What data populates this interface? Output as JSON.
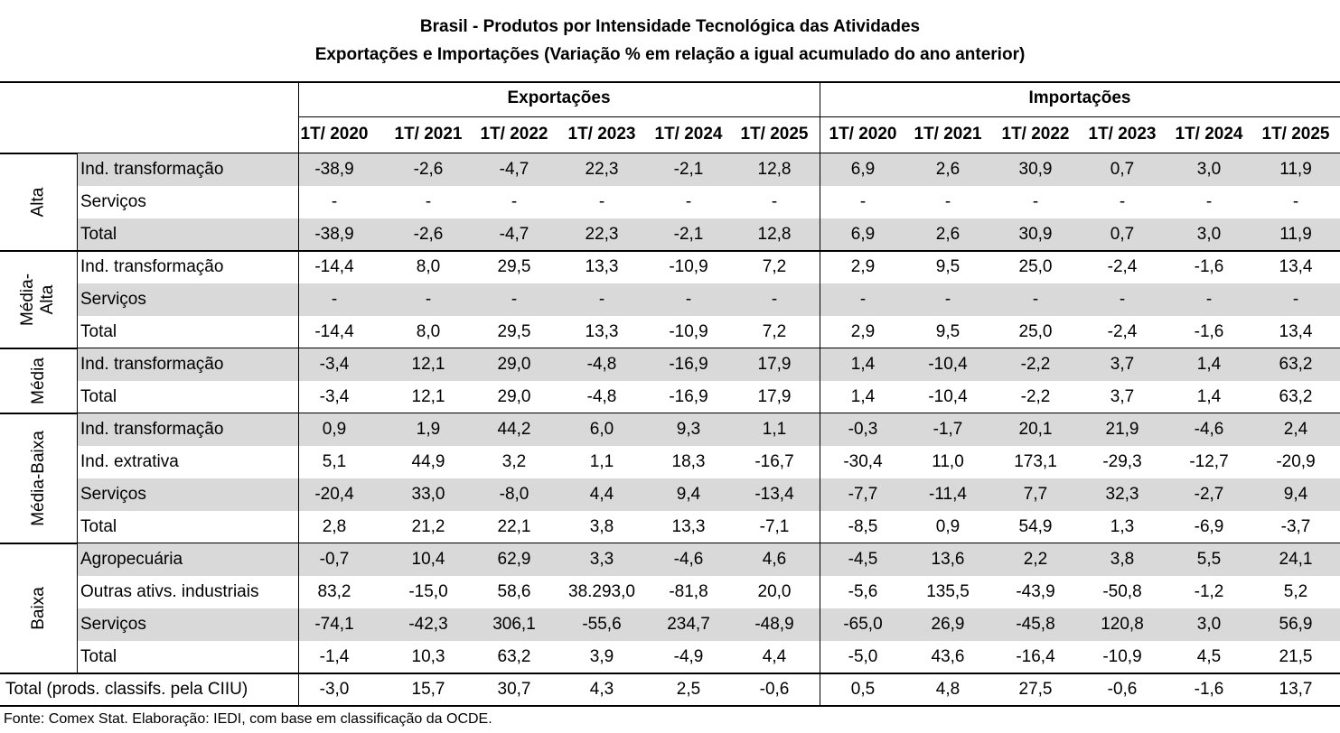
{
  "title_line1": "Brasil - Produtos por Intensidade Tecnológica das Atividades",
  "title_line2": "Exportações e Importações (Variação % em relação a igual acumulado do ano anterior)",
  "header": {
    "exports": "Exportações",
    "imports": "Importações",
    "periods": [
      "1T/ 2020",
      "1T/ 2021",
      "1T/ 2022",
      "1T/ 2023",
      "1T/ 2024",
      "1T/ 2025"
    ]
  },
  "groups": [
    {
      "name": "Alta",
      "rows": [
        {
          "label": "Ind. transformação",
          "exp": [
            "-38,9",
            "-2,6",
            "-4,7",
            "22,3",
            "-2,1",
            "12,8"
          ],
          "imp": [
            "6,9",
            "2,6",
            "30,9",
            "0,7",
            "3,0",
            "11,9"
          ]
        },
        {
          "label": "Serviços",
          "exp": [
            "-",
            "-",
            "-",
            "-",
            "-",
            "-"
          ],
          "imp": [
            "-",
            "-",
            "-",
            "-",
            "-",
            "-"
          ]
        },
        {
          "label": "Total",
          "exp": [
            "-38,9",
            "-2,6",
            "-4,7",
            "22,3",
            "-2,1",
            "12,8"
          ],
          "imp": [
            "6,9",
            "2,6",
            "30,9",
            "0,7",
            "3,0",
            "11,9"
          ]
        }
      ]
    },
    {
      "name": "Média-\nAlta",
      "rows": [
        {
          "label": "Ind. transformação",
          "exp": [
            "-14,4",
            "8,0",
            "29,5",
            "13,3",
            "-10,9",
            "7,2"
          ],
          "imp": [
            "2,9",
            "9,5",
            "25,0",
            "-2,4",
            "-1,6",
            "13,4"
          ]
        },
        {
          "label": "Serviços",
          "exp": [
            "-",
            "-",
            "-",
            "-",
            "-",
            "-"
          ],
          "imp": [
            "-",
            "-",
            "-",
            "-",
            "-",
            "-"
          ]
        },
        {
          "label": "Total",
          "exp": [
            "-14,4",
            "8,0",
            "29,5",
            "13,3",
            "-10,9",
            "7,2"
          ],
          "imp": [
            "2,9",
            "9,5",
            "25,0",
            "-2,4",
            "-1,6",
            "13,4"
          ]
        }
      ]
    },
    {
      "name": "Média",
      "rows": [
        {
          "label": "Ind. transformação",
          "exp": [
            "-3,4",
            "12,1",
            "29,0",
            "-4,8",
            "-16,9",
            "17,9"
          ],
          "imp": [
            "1,4",
            "-10,4",
            "-2,2",
            "3,7",
            "1,4",
            "63,2"
          ]
        },
        {
          "label": "Total",
          "exp": [
            "-3,4",
            "12,1",
            "29,0",
            "-4,8",
            "-16,9",
            "17,9"
          ],
          "imp": [
            "1,4",
            "-10,4",
            "-2,2",
            "3,7",
            "1,4",
            "63,2"
          ]
        }
      ]
    },
    {
      "name": "Média-Baixa",
      "rows": [
        {
          "label": "Ind. transformação",
          "exp": [
            "0,9",
            "1,9",
            "44,2",
            "6,0",
            "9,3",
            "1,1"
          ],
          "imp": [
            "-0,3",
            "-1,7",
            "20,1",
            "21,9",
            "-4,6",
            "2,4"
          ]
        },
        {
          "label": "Ind. extrativa",
          "exp": [
            "5,1",
            "44,9",
            "3,2",
            "1,1",
            "18,3",
            "-16,7"
          ],
          "imp": [
            "-30,4",
            "11,0",
            "173,1",
            "-29,3",
            "-12,7",
            "-20,9"
          ]
        },
        {
          "label": "Serviços",
          "exp": [
            "-20,4",
            "33,0",
            "-8,0",
            "4,4",
            "9,4",
            "-13,4"
          ],
          "imp": [
            "-7,7",
            "-11,4",
            "7,7",
            "32,3",
            "-2,7",
            "9,4"
          ]
        },
        {
          "label": "Total",
          "exp": [
            "2,8",
            "21,2",
            "22,1",
            "3,8",
            "13,3",
            "-7,1"
          ],
          "imp": [
            "-8,5",
            "0,9",
            "54,9",
            "1,3",
            "-6,9",
            "-3,7"
          ]
        }
      ]
    },
    {
      "name": "Baixa",
      "rows": [
        {
          "label": "Agropecuária",
          "exp": [
            "-0,7",
            "10,4",
            "62,9",
            "3,3",
            "-4,6",
            "4,6"
          ],
          "imp": [
            "-4,5",
            "13,6",
            "2,2",
            "3,8",
            "5,5",
            "24,1"
          ]
        },
        {
          "label": "Outras ativs. industriais",
          "exp": [
            "83,2",
            "-15,0",
            "58,6",
            "38.293,0",
            "-81,8",
            "20,0"
          ],
          "imp": [
            "-5,6",
            "135,5",
            "-43,9",
            "-50,8",
            "-1,2",
            "5,2"
          ]
        },
        {
          "label": "Serviços",
          "exp": [
            "-74,1",
            "-42,3",
            "306,1",
            "-55,6",
            "234,7",
            "-48,9"
          ],
          "imp": [
            "-65,0",
            "26,9",
            "-45,8",
            "120,8",
            "3,0",
            "56,9"
          ]
        },
        {
          "label": "Total",
          "exp": [
            "-1,4",
            "10,3",
            "63,2",
            "3,9",
            "-4,9",
            "4,4"
          ],
          "imp": [
            "-5,0",
            "43,6",
            "-16,4",
            "-10,9",
            "4,5",
            "21,5"
          ]
        }
      ]
    }
  ],
  "grand_total": {
    "label": "Total (prods. classifs. pela CIIU)",
    "exp": [
      "-3,0",
      "15,7",
      "30,7",
      "4,3",
      "2,5",
      "-0,6"
    ],
    "imp": [
      "0,5",
      "4,8",
      "27,5",
      "-0,6",
      "-1,6",
      "13,7"
    ]
  },
  "source": "Fonte: Comex Stat. Elaboração: IEDI, com base em classificação da OCDE."
}
